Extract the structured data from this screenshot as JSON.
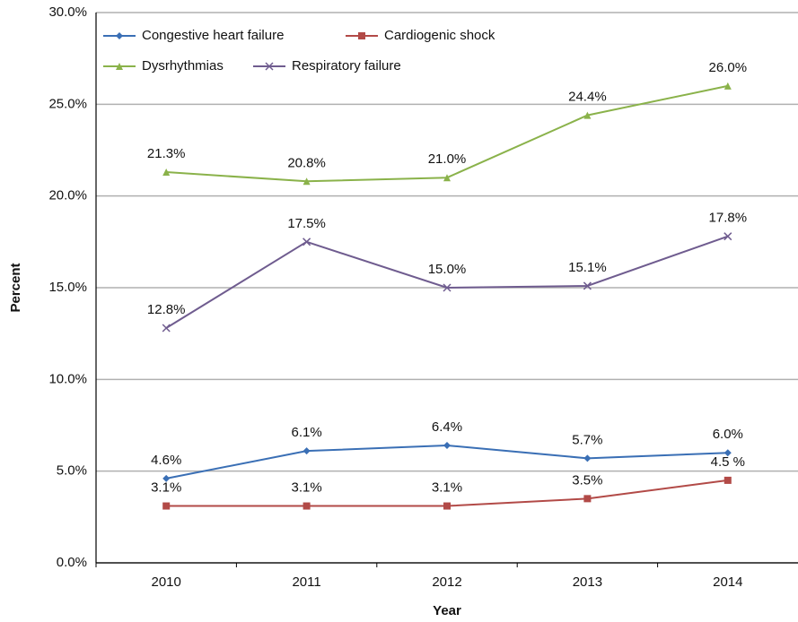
{
  "chart_data": {
    "type": "line",
    "xlabel": "Year",
    "ylabel": "Percent",
    "categories": [
      "2010",
      "2011",
      "2012",
      "2013",
      "2014"
    ],
    "series": [
      {
        "name": "Congestive heart failure",
        "color": "#3a6fb5",
        "marker": "diamond",
        "values": [
          4.6,
          6.1,
          6.4,
          5.7,
          6.0
        ],
        "value_labels": [
          "4.6%",
          "6.1%",
          "6.4%",
          "5.7%",
          "6.0%"
        ]
      },
      {
        "name": "Cardiogenic shock",
        "color": "#b24a47",
        "marker": "square",
        "values": [
          3.1,
          3.1,
          3.1,
          3.5,
          4.5
        ],
        "value_labels": [
          "3.1%",
          "3.1%",
          "3.1%",
          "3.5%",
          "4.5 %"
        ]
      },
      {
        "name": "Dysrhythmias",
        "color": "#8ab24a",
        "marker": "triangle",
        "values": [
          21.3,
          20.8,
          21.0,
          24.4,
          26.0
        ],
        "value_labels": [
          "21.3%",
          "20.8%",
          "21.0%",
          "24.4%",
          "26.0%"
        ]
      },
      {
        "name": "Respiratory failure",
        "color": "#6f5c8f",
        "marker": "x",
        "values": [
          12.8,
          17.5,
          15.0,
          15.1,
          17.8
        ],
        "value_labels": [
          "12.8%",
          "17.5%",
          "15.0%",
          "15.1%",
          "17.8%"
        ]
      }
    ],
    "ylim": [
      0,
      30
    ],
    "yticks": [
      {
        "value": 0,
        "label": "0.0%"
      },
      {
        "value": 5,
        "label": "5.0%"
      },
      {
        "value": 10,
        "label": "10.0%"
      },
      {
        "value": 15,
        "label": "15.0%"
      },
      {
        "value": 20,
        "label": "20.0%"
      },
      {
        "value": 25,
        "label": "25.0%"
      },
      {
        "value": 30,
        "label": "30.0%"
      }
    ],
    "grid": true,
    "legend": "upper left"
  }
}
